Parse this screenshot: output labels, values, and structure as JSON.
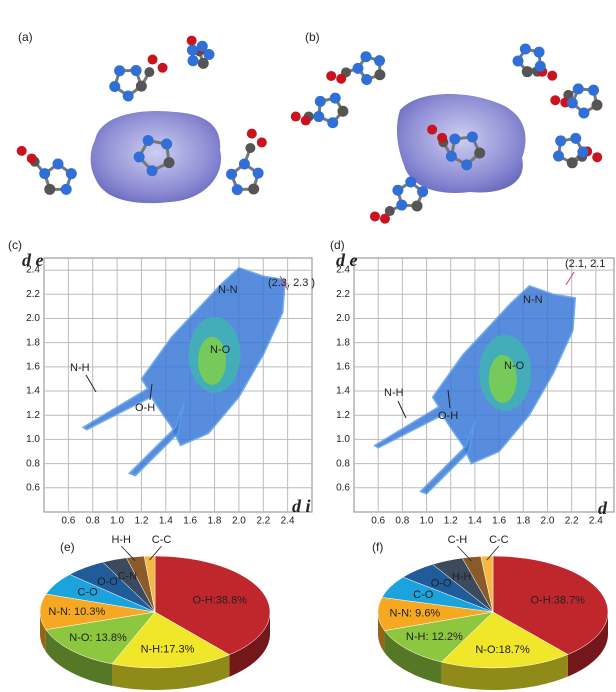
{
  "figure_labels": {
    "a": "(a)",
    "b": "(b)"
  },
  "chart_data": [
    {
      "type": "fingerprint",
      "panel_label": "(c)",
      "x_label": "d i",
      "y_label": "d e",
      "xlim": [
        0.4,
        2.6
      ],
      "ylim": [
        0.4,
        2.5
      ],
      "xticks": [
        0.6,
        0.8,
        {
          "value": 1,
          "label": "1.0"
        },
        1.2,
        1.4,
        1.6,
        1.8,
        {
          "value": 2,
          "label": "2.0"
        },
        2.2,
        2.4
      ],
      "yticks": [
        0.6,
        0.8,
        {
          "value": 1,
          "label": "1.0"
        },
        1.2,
        1.4,
        1.6,
        1.8,
        {
          "value": 2,
          "label": "2.0"
        },
        2.2,
        2.4
      ],
      "grid": true,
      "annotations": [
        "(2.3, 2.3 )",
        "N-N",
        "N-O",
        "O-H",
        "N-H"
      ]
    },
    {
      "type": "fingerprint",
      "panel_label": "(d)",
      "x_label": "d",
      "y_label": "d e",
      "xlim": [
        0.4,
        2.55
      ],
      "ylim": [
        0.4,
        2.5
      ],
      "xticks": [
        0.6,
        0.8,
        {
          "value": 1,
          "label": "1.0"
        },
        1.2,
        1.4,
        1.6,
        1.8,
        {
          "value": 2,
          "label": "2.0"
        },
        2.2,
        2.4
      ],
      "yticks": [
        0.6,
        0.8,
        {
          "value": 1,
          "label": "1.0"
        },
        1.2,
        1.4,
        1.6,
        1.8,
        {
          "value": 2,
          "label": "2.0"
        },
        2.2,
        2.4
      ],
      "grid": true,
      "annotations": [
        "(2.1, 2.1",
        "N-N",
        "N-O",
        "O-H",
        "N-H"
      ]
    },
    {
      "type": "pie",
      "panel_label": "(e)",
      "categories": [
        "O-H",
        "N-H",
        "N-O",
        "N-N",
        "C-O",
        "O-O",
        "C-N",
        "H-H",
        "C-C"
      ],
      "values": [
        38.8,
        17.3,
        13.8,
        10.3,
        6.5,
        5.8,
        3.5,
        2.5,
        1.5
      ],
      "value_labels": [
        ":38.8%",
        ":17.3%",
        ": 13.8%",
        ": 10.3%",
        null,
        null,
        null,
        null,
        null
      ],
      "colors": [
        "#c0272d",
        "#f0e62a",
        "#8dc63f",
        "#f7a823",
        "#1aa3dc",
        "#1f5c99",
        "#3b4a5c",
        "#8a5a2b",
        "#f5b942"
      ]
    },
    {
      "type": "pie",
      "panel_label": "(f)",
      "categories": [
        "O-H",
        "N-O",
        "N-H",
        "N-N",
        "C-O",
        "O-O",
        "H-H",
        "C-H",
        "C-C"
      ],
      "values": [
        38.7,
        18.7,
        12.2,
        9.6,
        6.5,
        5.5,
        4.5,
        2.6,
        1.7
      ],
      "value_labels": [
        ":38.7%",
        ":18.7%",
        ": 12.2%",
        ": 9.6%",
        null,
        null,
        null,
        null,
        null
      ],
      "colors": [
        "#c0272d",
        "#f0e62a",
        "#8dc63f",
        "#f7a823",
        "#1aa3dc",
        "#1f5c99",
        "#3b4a5c",
        "#8a5a2b",
        "#f5b942"
      ]
    }
  ]
}
